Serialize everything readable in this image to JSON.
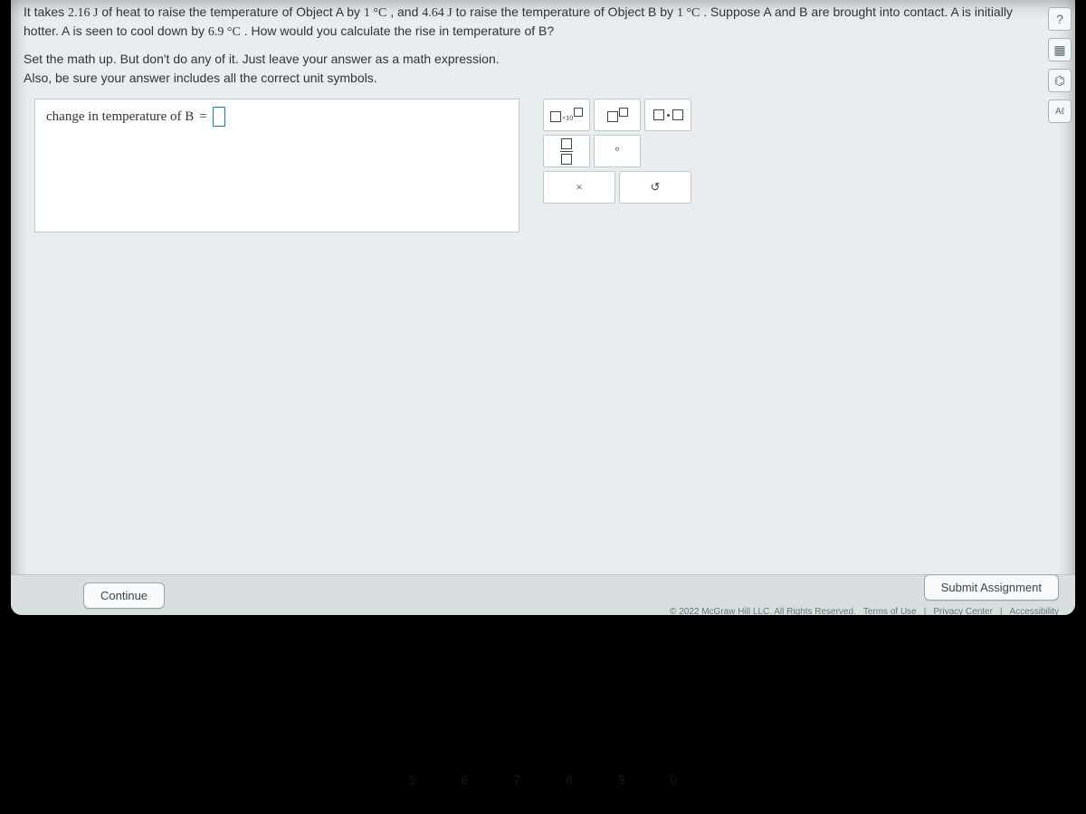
{
  "question": {
    "text_parts": {
      "p1": "It takes ",
      "heat_A": "2.16 J",
      "p2": " of heat to raise the temperature of Object A by ",
      "deg1": "1 °C",
      "p3": ", and ",
      "heat_B": "4.64 J",
      "p4": " to raise the temperature of Object B by ",
      "deg2": "1 °C",
      "p5": ". Suppose A and B are brought into contact. A is initially hotter. A is seen to cool down by ",
      "cool": "6.9 °C",
      "p6": ". How would you calculate the rise in temperature of B?"
    },
    "instruction_line1": "Set the math up. But don't do any of it. Just leave your answer as a math expression.",
    "instruction_line2": "Also, be sure your answer includes all the correct unit symbols."
  },
  "answer": {
    "label_prefix": "change in temperature of B",
    "equals": "="
  },
  "keypad": {
    "degree_symbol": "°",
    "reset_symbol": "↺",
    "clear_symbol": "×"
  },
  "side_tools": {
    "help": "?",
    "calc": "▦",
    "periodic": "⌬",
    "accessibility": "Aℓ"
  },
  "buttons": {
    "continue": "Continue",
    "submit": "Submit Assignment"
  },
  "footer": {
    "copyright": "© 2022 McGraw Hill LLC. All Rights Reserved.",
    "terms": "Terms of Use",
    "privacy": "Privacy Center",
    "accessibility": "Accessibility"
  },
  "keyboard_row": [
    "5",
    "6",
    "7",
    "8",
    "9",
    "0"
  ],
  "colors": {
    "screen_bg": "#e8edef",
    "box_bg": "#ffffff",
    "border": "#bfc8cc",
    "accent": "#0b7ec2",
    "bottom_bar": "#d9dfe1"
  }
}
